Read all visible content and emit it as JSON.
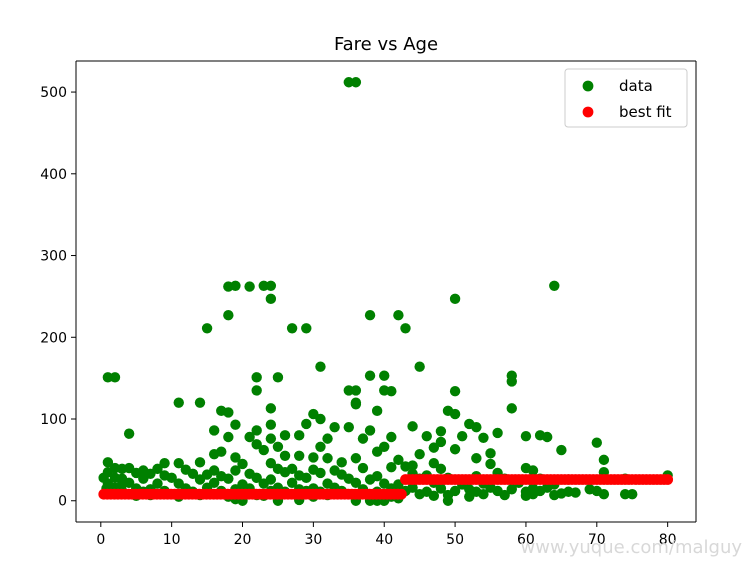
{
  "watermark": "www.yuque.com/malguy",
  "chart_data": {
    "type": "scatter",
    "title": "Fare vs Age",
    "xlabel": "",
    "ylabel": "",
    "xlim": [
      -3.5,
      84
    ],
    "ylim": [
      -26,
      538
    ],
    "xticks": [
      0,
      10,
      20,
      30,
      40,
      50,
      60,
      70,
      80
    ],
    "yticks": [
      0,
      100,
      200,
      300,
      400,
      500
    ],
    "grid": false,
    "legend_position": "top-right",
    "colors": {
      "data": "#008000",
      "best_fit": "#ff0000"
    },
    "series": [
      {
        "name": "data",
        "color": "#008000",
        "points": [
          [
            35,
            512
          ],
          [
            36,
            512
          ],
          [
            64,
            263
          ],
          [
            18,
            262
          ],
          [
            19,
            263
          ],
          [
            21,
            262
          ],
          [
            23,
            263
          ],
          [
            24,
            263
          ],
          [
            24,
            247
          ],
          [
            50,
            247
          ],
          [
            18,
            227
          ],
          [
            38,
            227
          ],
          [
            42,
            227
          ],
          [
            15,
            211
          ],
          [
            27,
            211
          ],
          [
            29,
            211
          ],
          [
            43,
            211
          ],
          [
            31,
            164
          ],
          [
            45,
            164
          ],
          [
            1,
            151
          ],
          [
            2,
            151
          ],
          [
            22,
            151
          ],
          [
            25,
            151
          ],
          [
            58,
            153
          ],
          [
            58,
            146
          ],
          [
            38,
            153
          ],
          [
            40,
            153
          ],
          [
            35,
            135
          ],
          [
            36,
            135
          ],
          [
            50,
            134
          ],
          [
            22,
            135
          ],
          [
            40,
            135
          ],
          [
            41,
            134
          ],
          [
            11,
            120
          ],
          [
            14,
            120
          ],
          [
            36,
            120
          ],
          [
            36,
            118
          ],
          [
            58,
            113
          ],
          [
            24,
            113
          ],
          [
            17,
            110
          ],
          [
            18,
            108
          ],
          [
            30,
            106
          ],
          [
            39,
            110
          ],
          [
            49,
            110
          ],
          [
            50,
            106
          ],
          [
            31,
            100
          ],
          [
            29,
            94
          ],
          [
            19,
            93
          ],
          [
            24,
            93
          ],
          [
            33,
            90
          ],
          [
            35,
            90
          ],
          [
            44,
            91
          ],
          [
            52,
            94
          ],
          [
            53,
            90
          ],
          [
            16,
            86
          ],
          [
            22,
            86
          ],
          [
            38,
            86
          ],
          [
            48,
            85
          ],
          [
            4,
            82
          ],
          [
            26,
            80
          ],
          [
            28,
            80
          ],
          [
            41,
            78
          ],
          [
            46,
            79
          ],
          [
            51,
            79
          ],
          [
            56,
            83
          ],
          [
            60,
            79
          ],
          [
            62,
            80
          ],
          [
            63,
            78
          ],
          [
            18,
            78
          ],
          [
            21,
            78
          ],
          [
            24,
            76
          ],
          [
            32,
            76
          ],
          [
            37,
            76
          ],
          [
            48,
            72
          ],
          [
            54,
            77
          ],
          [
            70,
            71
          ],
          [
            22,
            69
          ],
          [
            25,
            66
          ],
          [
            31,
            66
          ],
          [
            40,
            66
          ],
          [
            47,
            65
          ],
          [
            50,
            63
          ],
          [
            65,
            62
          ],
          [
            23,
            62
          ],
          [
            17,
            60
          ],
          [
            16,
            57
          ],
          [
            39,
            60
          ],
          [
            55,
            58
          ],
          [
            45,
            57
          ],
          [
            28,
            55
          ],
          [
            30,
            53
          ],
          [
            26,
            55
          ],
          [
            36,
            52
          ],
          [
            42,
            50
          ],
          [
            71,
            50
          ],
          [
            53,
            52
          ],
          [
            19,
            53
          ],
          [
            32,
            52
          ],
          [
            1,
            47
          ],
          [
            11,
            46
          ],
          [
            14,
            47
          ],
          [
            24,
            46
          ],
          [
            34,
            47
          ],
          [
            9,
            46
          ],
          [
            20,
            45
          ],
          [
            47,
            46
          ],
          [
            55,
            45
          ],
          [
            44,
            43
          ],
          [
            43,
            42
          ],
          [
            2,
            40
          ],
          [
            3,
            39
          ],
          [
            4,
            40
          ],
          [
            6,
            37
          ],
          [
            8,
            39
          ],
          [
            12,
            38
          ],
          [
            16,
            37
          ],
          [
            19,
            37
          ],
          [
            25,
            39
          ],
          [
            27,
            39
          ],
          [
            30,
            38
          ],
          [
            33,
            37
          ],
          [
            37,
            40
          ],
          [
            41,
            41
          ],
          [
            48,
            39
          ],
          [
            60,
            40
          ],
          [
            61,
            37
          ],
          [
            1,
            35
          ],
          [
            5,
            34
          ],
          [
            7,
            33
          ],
          [
            9,
            31
          ],
          [
            13,
            33
          ],
          [
            15,
            32
          ],
          [
            17,
            30
          ],
          [
            21,
            33
          ],
          [
            26,
            35
          ],
          [
            28,
            31
          ],
          [
            31,
            34
          ],
          [
            34,
            32
          ],
          [
            39,
            30
          ],
          [
            44,
            33
          ],
          [
            46,
            31
          ],
          [
            53,
            30
          ],
          [
            56,
            34
          ],
          [
            71,
            35
          ],
          [
            80,
            31
          ],
          [
            0.4,
            28
          ],
          [
            2,
            28
          ],
          [
            3,
            27
          ],
          [
            6,
            27
          ],
          [
            10,
            28
          ],
          [
            14,
            26
          ],
          [
            18,
            27
          ],
          [
            22,
            28
          ],
          [
            24,
            26
          ],
          [
            29,
            28
          ],
          [
            35,
            27
          ],
          [
            38,
            26
          ],
          [
            45,
            27
          ],
          [
            49,
            28
          ],
          [
            57,
            27
          ],
          [
            62,
            27
          ],
          [
            66,
            26
          ],
          [
            74,
            27
          ],
          [
            1,
            21
          ],
          [
            3,
            20
          ],
          [
            4,
            22
          ],
          [
            8,
            21
          ],
          [
            11,
            21
          ],
          [
            16,
            22
          ],
          [
            20,
            20
          ],
          [
            23,
            21
          ],
          [
            27,
            22
          ],
          [
            32,
            21
          ],
          [
            36,
            22
          ],
          [
            40,
            21
          ],
          [
            42,
            20
          ],
          [
            47,
            22
          ],
          [
            51,
            20
          ],
          [
            54,
            21
          ],
          [
            59,
            22
          ],
          [
            64,
            20
          ],
          [
            0.8,
            15
          ],
          [
            2,
            16
          ],
          [
            5,
            15
          ],
          [
            7,
            14
          ],
          [
            12,
            15
          ],
          [
            15,
            16
          ],
          [
            19,
            14
          ],
          [
            21,
            15
          ],
          [
            25,
            16
          ],
          [
            28,
            14
          ],
          [
            30,
            15
          ],
          [
            33,
            16
          ],
          [
            37,
            14
          ],
          [
            41,
            15
          ],
          [
            44,
            16
          ],
          [
            48,
            15
          ],
          [
            52,
            14
          ],
          [
            55,
            16
          ],
          [
            58,
            14
          ],
          [
            61,
            15
          ],
          [
            63,
            16
          ],
          [
            69,
            14
          ],
          [
            1,
            11
          ],
          [
            3,
            12
          ],
          [
            6,
            11
          ],
          [
            9,
            12
          ],
          [
            13,
            11
          ],
          [
            17,
            12
          ],
          [
            20,
            11
          ],
          [
            24,
            12
          ],
          [
            26,
            11
          ],
          [
            29,
            12
          ],
          [
            31,
            11
          ],
          [
            34,
            12
          ],
          [
            39,
            11
          ],
          [
            43,
            12
          ],
          [
            46,
            11
          ],
          [
            50,
            12
          ],
          [
            53,
            11
          ],
          [
            56,
            12
          ],
          [
            60,
            11
          ],
          [
            62,
            12
          ],
          [
            66,
            11
          ],
          [
            70,
            12
          ],
          [
            71,
            8
          ],
          [
            74,
            8
          ],
          [
            2,
            8
          ],
          [
            4,
            8
          ],
          [
            7,
            7
          ],
          [
            10,
            8
          ],
          [
            14,
            7
          ],
          [
            16,
            8
          ],
          [
            22,
            7
          ],
          [
            27,
            8
          ],
          [
            32,
            7
          ],
          [
            35,
            8
          ],
          [
            40,
            7
          ],
          [
            45,
            8
          ],
          [
            49,
            7
          ],
          [
            54,
            8
          ],
          [
            57,
            7
          ],
          [
            61,
            8
          ],
          [
            64,
            7
          ],
          [
            65,
            9
          ],
          [
            67,
            10
          ],
          [
            75,
            8
          ],
          [
            5,
            6
          ],
          [
            11,
            5
          ],
          [
            18,
            5
          ],
          [
            23,
            6
          ],
          [
            30,
            5
          ],
          [
            36,
            6
          ],
          [
            41,
            5
          ],
          [
            47,
            6
          ],
          [
            52,
            5
          ],
          [
            60,
            6
          ],
          [
            20,
            0
          ],
          [
            25,
            0
          ],
          [
            36,
            0
          ],
          [
            38,
            0
          ],
          [
            39,
            0
          ],
          [
            40,
            0
          ],
          [
            49,
            0
          ],
          [
            19,
            2
          ],
          [
            28,
            1
          ],
          [
            42,
            3
          ]
        ]
      },
      {
        "name": "best fit",
        "color": "#ff0000",
        "segments": [
          {
            "x_range": [
              0.42,
              42.5
            ],
            "y": 8
          },
          {
            "x_range": [
              43.0,
              80.0
            ],
            "y": 26
          }
        ]
      }
    ]
  }
}
